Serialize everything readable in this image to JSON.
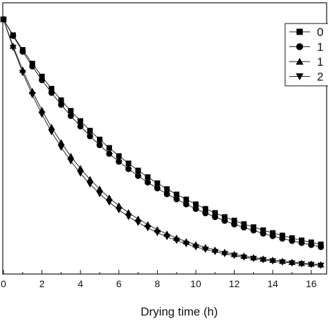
{
  "chart_data": {
    "type": "line",
    "title": "",
    "xlabel": "Drying time (h)",
    "ylabel": "",
    "xlim": [
      0,
      16.8
    ],
    "ylim": [
      0,
      1.0
    ],
    "x_ticks": [
      0,
      2,
      4,
      6,
      8,
      10,
      12,
      14,
      16
    ],
    "grid": false,
    "legend_position": "top-right",
    "series": [
      {
        "name": "0",
        "marker": "square",
        "x": [
          0,
          0.5,
          1,
          1.5,
          2,
          2.5,
          3,
          3.5,
          4,
          4.5,
          5,
          5.5,
          6,
          6.5,
          7,
          7.5,
          8,
          8.5,
          9,
          9.5,
          10,
          10.5,
          11,
          11.5,
          12,
          12.5,
          13,
          13.5,
          14,
          14.5,
          15,
          15.5,
          16,
          16.5
        ],
        "y": [
          1.0,
          0.938,
          0.88,
          0.826,
          0.775,
          0.727,
          0.682,
          0.64,
          0.6,
          0.562,
          0.527,
          0.494,
          0.462,
          0.433,
          0.405,
          0.379,
          0.355,
          0.332,
          0.311,
          0.291,
          0.272,
          0.254,
          0.238,
          0.222,
          0.208,
          0.194,
          0.182,
          0.17,
          0.159,
          0.149,
          0.139,
          0.13,
          0.122,
          0.114
        ]
      },
      {
        "name": "1",
        "marker": "circle",
        "x": [
          0,
          0.5,
          1,
          1.5,
          2,
          2.5,
          3,
          3.5,
          4,
          4.5,
          5,
          5.5,
          6,
          6.5,
          7,
          7.5,
          8,
          8.5,
          9,
          9.5,
          10,
          10.5,
          11,
          11.5,
          12,
          12.5,
          13,
          13.5,
          14,
          14.5,
          15,
          15.5,
          16,
          16.5
        ],
        "y": [
          1.0,
          0.935,
          0.873,
          0.815,
          0.761,
          0.711,
          0.664,
          0.62,
          0.579,
          0.54,
          0.505,
          0.471,
          0.44,
          0.411,
          0.384,
          0.358,
          0.335,
          0.312,
          0.292,
          0.272,
          0.254,
          0.237,
          0.222,
          0.207,
          0.193,
          0.181,
          0.169,
          0.157,
          0.147,
          0.137,
          0.128,
          0.12,
          0.112,
          0.104
        ]
      },
      {
        "name": "1",
        "marker": "triangle-up",
        "x": [
          0,
          0.5,
          1,
          1.5,
          2,
          2.5,
          3,
          3.5,
          4,
          4.5,
          5,
          5.5,
          6,
          6.5,
          7,
          7.5,
          8,
          8.5,
          9,
          9.5,
          10,
          10.5,
          11,
          11.5,
          12,
          12.5,
          13,
          13.5,
          14,
          14.5,
          15,
          15.5,
          16,
          16.5
        ],
        "y": [
          1.0,
          0.895,
          0.801,
          0.717,
          0.642,
          0.575,
          0.515,
          0.461,
          0.413,
          0.37,
          0.332,
          0.297,
          0.266,
          0.239,
          0.214,
          0.192,
          0.172,
          0.155,
          0.139,
          0.125,
          0.113,
          0.102,
          0.092,
          0.083,
          0.075,
          0.068,
          0.062,
          0.057,
          0.052,
          0.048,
          0.044,
          0.04,
          0.037,
          0.034
        ]
      },
      {
        "name": "2",
        "marker": "triangle-down",
        "x": [
          0,
          0.5,
          1,
          1.5,
          2,
          2.5,
          3,
          3.5,
          4,
          4.5,
          5,
          5.5,
          6,
          6.5,
          7,
          7.5,
          8,
          8.5,
          9,
          9.5,
          10,
          10.5,
          11,
          11.5,
          12,
          12.5,
          13,
          13.5,
          14,
          14.5,
          15,
          15.5,
          16,
          16.5
        ],
        "y": [
          1.0,
          0.889,
          0.79,
          0.703,
          0.626,
          0.557,
          0.496,
          0.442,
          0.394,
          0.351,
          0.313,
          0.28,
          0.25,
          0.223,
          0.2,
          0.179,
          0.16,
          0.144,
          0.129,
          0.116,
          0.104,
          0.094,
          0.085,
          0.077,
          0.07,
          0.063,
          0.058,
          0.053,
          0.048,
          0.044,
          0.04,
          0.037,
          0.034,
          0.031
        ]
      }
    ]
  },
  "colors": {
    "axis": "#111111",
    "series_line": "#222222",
    "marker_fill": "#000000"
  }
}
